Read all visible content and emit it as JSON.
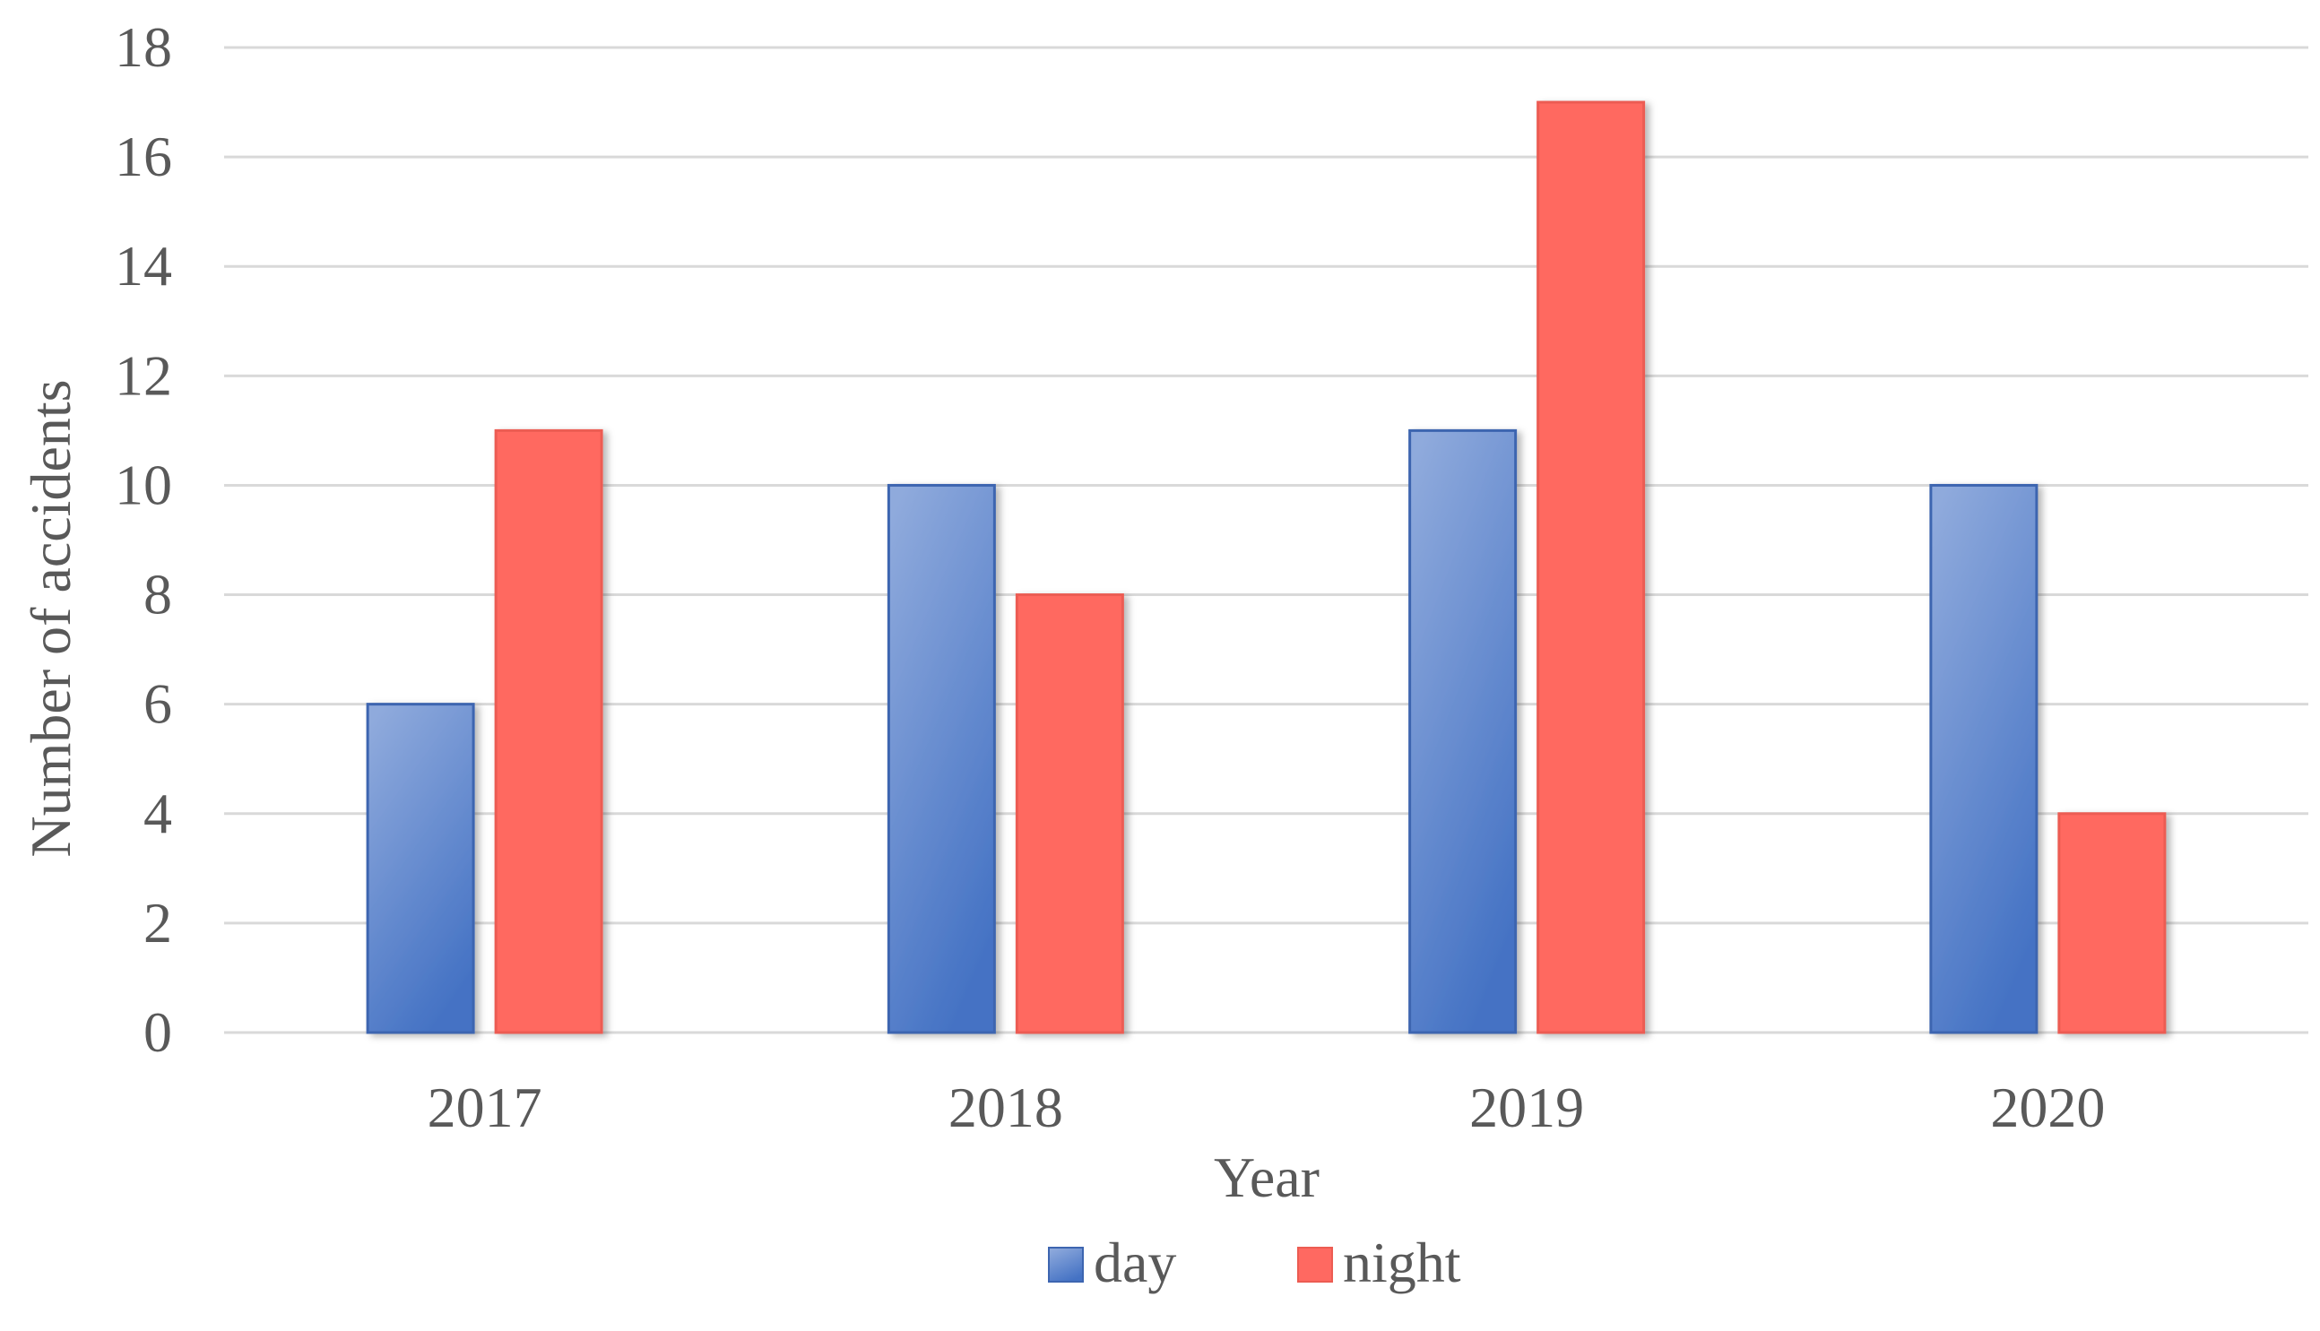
{
  "chart_data": {
    "type": "bar",
    "title": "",
    "xlabel": "Year",
    "ylabel": "Number of accidents",
    "categories": [
      "2017",
      "2018",
      "2019",
      "2020"
    ],
    "ylim": [
      0,
      18
    ],
    "yticks": [
      "0",
      "2",
      "4",
      "6",
      "8",
      "10",
      "12",
      "14",
      "16",
      "18"
    ],
    "grid": true,
    "legend_position": "bottom",
    "series": [
      {
        "name": "day",
        "values": [
          6,
          10,
          11,
          10
        ],
        "color": "#4472c4",
        "color_light": "#8faadc"
      },
      {
        "name": "night",
        "values": [
          11,
          8,
          17,
          4
        ],
        "color": "#ff6961"
      }
    ]
  }
}
